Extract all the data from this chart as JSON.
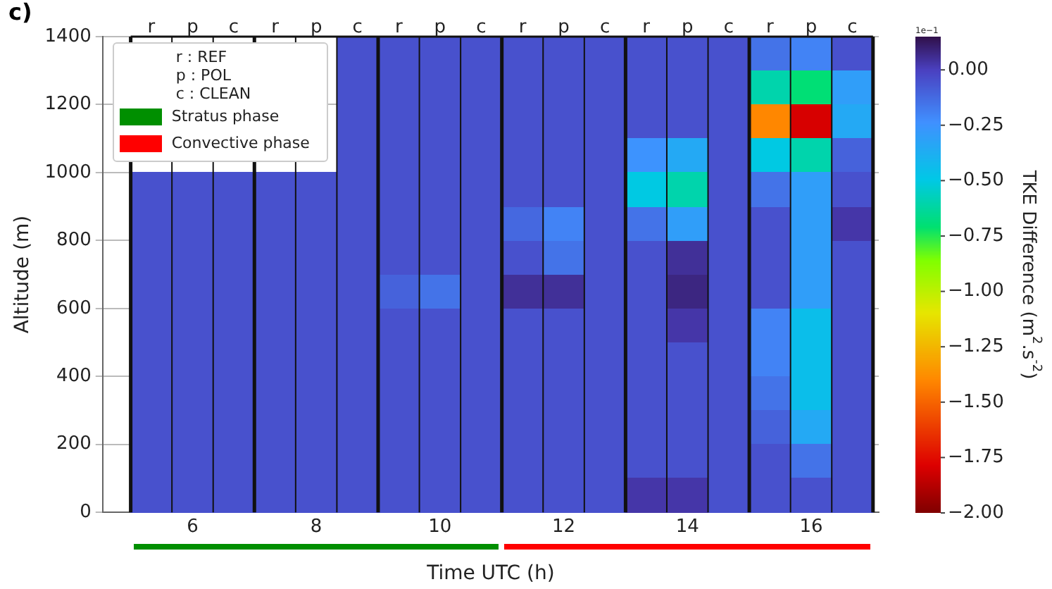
{
  "chart_data": {
    "type": "heatmap",
    "title": "c)",
    "xlabel": "Time UTC (h)",
    "ylabel": "Altitude (m)",
    "clabel": "TKE Difference (m$^{2}$.s$^{-2}$)",
    "categories": [
      "r",
      "p",
      "c",
      "r",
      "p",
      "c",
      "r",
      "p",
      "c",
      "r",
      "p",
      "c",
      "r",
      "p",
      "c",
      "r",
      "p",
      "c"
    ],
    "cells": [
      [
        null,
        null,
        null,
        null,
        null,
        -0.05,
        -0.05,
        -0.05,
        -0.05,
        -0.05,
        -0.05,
        -0.05,
        -0.05,
        -0.05,
        -0.05,
        -0.15,
        -0.2,
        -0.05
      ],
      [
        null,
        null,
        null,
        null,
        null,
        -0.05,
        -0.05,
        -0.05,
        -0.05,
        -0.05,
        -0.05,
        -0.05,
        -0.05,
        -0.05,
        -0.05,
        -0.6,
        -0.7,
        -0.3
      ],
      [
        null,
        null,
        null,
        null,
        null,
        -0.05,
        -0.05,
        -0.05,
        -0.05,
        -0.05,
        -0.05,
        -0.05,
        -0.05,
        -0.05,
        -0.05,
        -1.4,
        -1.8,
        -0.35
      ],
      [
        null,
        null,
        null,
        null,
        null,
        -0.05,
        -0.05,
        -0.05,
        -0.05,
        -0.05,
        -0.05,
        -0.05,
        -0.25,
        -0.35,
        -0.05,
        -0.5,
        -0.6,
        -0.1
      ],
      [
        -0.05,
        -0.05,
        -0.05,
        -0.05,
        -0.05,
        -0.05,
        -0.05,
        -0.05,
        -0.05,
        -0.05,
        -0.05,
        -0.05,
        -0.5,
        -0.6,
        -0.05,
        -0.15,
        -0.3,
        -0.05
      ],
      [
        -0.05,
        -0.05,
        -0.05,
        -0.05,
        -0.05,
        -0.05,
        -0.05,
        -0.05,
        -0.05,
        -0.12,
        -0.2,
        -0.05,
        -0.15,
        -0.3,
        -0.05,
        -0.05,
        -0.3,
        0.03
      ],
      [
        -0.05,
        -0.05,
        -0.05,
        -0.05,
        -0.05,
        -0.05,
        -0.05,
        -0.05,
        -0.05,
        -0.05,
        -0.15,
        -0.05,
        -0.05,
        0.05,
        -0.05,
        -0.05,
        -0.3,
        -0.05
      ],
      [
        -0.05,
        -0.05,
        -0.05,
        -0.05,
        -0.05,
        -0.05,
        -0.1,
        -0.15,
        -0.05,
        0.05,
        0.05,
        -0.05,
        -0.05,
        0.08,
        -0.05,
        -0.05,
        -0.3,
        -0.05
      ],
      [
        -0.05,
        -0.05,
        -0.05,
        -0.05,
        -0.05,
        -0.05,
        -0.05,
        -0.05,
        -0.05,
        -0.05,
        -0.05,
        -0.05,
        -0.05,
        0.03,
        -0.05,
        -0.2,
        -0.45,
        -0.05
      ],
      [
        -0.05,
        -0.05,
        -0.05,
        -0.05,
        -0.05,
        -0.05,
        -0.05,
        -0.05,
        -0.05,
        -0.05,
        -0.05,
        -0.05,
        -0.05,
        -0.05,
        -0.05,
        -0.2,
        -0.45,
        -0.05
      ],
      [
        -0.05,
        -0.05,
        -0.05,
        -0.05,
        -0.05,
        -0.05,
        -0.05,
        -0.05,
        -0.05,
        -0.05,
        -0.05,
        -0.05,
        -0.05,
        -0.05,
        -0.05,
        -0.15,
        -0.45,
        -0.05
      ],
      [
        -0.05,
        -0.05,
        -0.05,
        -0.05,
        -0.05,
        -0.05,
        -0.05,
        -0.05,
        -0.05,
        -0.05,
        -0.05,
        -0.05,
        -0.05,
        -0.05,
        -0.05,
        -0.1,
        -0.35,
        -0.05
      ],
      [
        -0.05,
        -0.05,
        -0.05,
        -0.05,
        -0.05,
        -0.05,
        -0.05,
        -0.05,
        -0.05,
        -0.05,
        -0.05,
        -0.05,
        -0.05,
        -0.05,
        -0.05,
        -0.05,
        -0.15,
        -0.05
      ],
      [
        -0.05,
        -0.05,
        -0.05,
        -0.05,
        -0.05,
        -0.05,
        -0.05,
        -0.05,
        -0.05,
        -0.05,
        -0.05,
        -0.05,
        0.03,
        0.03,
        -0.05,
        -0.05,
        -0.05,
        -0.05
      ]
    ],
    "ylim": [
      0,
      1400
    ],
    "yticks": [
      0,
      200,
      400,
      600,
      800,
      1000,
      1200,
      1400
    ],
    "clim": [
      -2,
      0.15
    ],
    "cticks": [
      {
        "value": 0,
        "label": "0.00"
      },
      {
        "value": -0.25,
        "label": "−0.25"
      },
      {
        "value": -0.5,
        "label": "−0.50"
      },
      {
        "value": -0.75,
        "label": "−0.75"
      },
      {
        "value": -1,
        "label": "−1.00"
      },
      {
        "value": -1.25,
        "label": "−1.25"
      },
      {
        "value": -1.5,
        "label": "−1.50"
      },
      {
        "value": -1.75,
        "label": "−1.75"
      },
      {
        "value": -2,
        "label": "−2.00"
      }
    ],
    "annotations": [
      "r : REF",
      "p : POL",
      "c : CLEAN",
      "Stratus phase",
      "Convective phase",
      "6",
      "8",
      "10",
      "12",
      "14",
      "16",
      "1e−1"
    ],
    "grid": "y"
  }
}
